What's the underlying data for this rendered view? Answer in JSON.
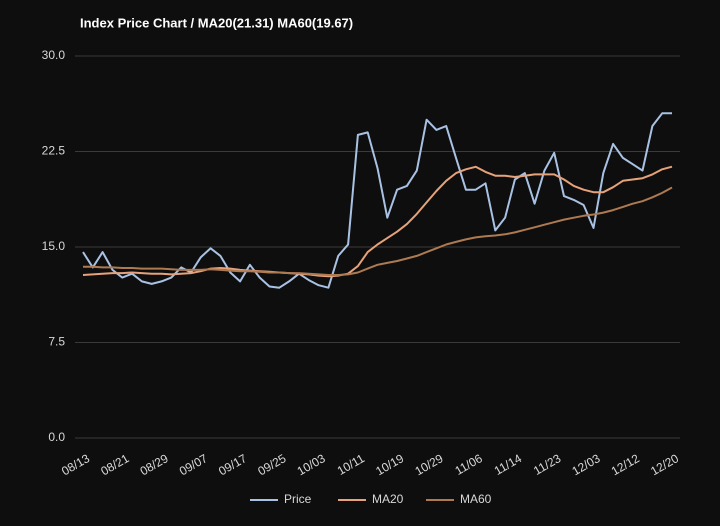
{
  "chart_data": {
    "type": "line",
    "title": "Index Price Chart / MA20(21.31) MA60(19.67)",
    "categories": [
      "08/13",
      null,
      null,
      null,
      "08/21",
      null,
      null,
      null,
      "08/29",
      null,
      null,
      null,
      "09/07",
      null,
      null,
      null,
      "09/17",
      null,
      null,
      null,
      "09/25",
      null,
      null,
      null,
      "10/03",
      null,
      null,
      null,
      "10/11",
      null,
      null,
      null,
      "10/19",
      null,
      null,
      null,
      "10/29",
      null,
      null,
      null,
      "11/06",
      null,
      null,
      null,
      "11/14",
      null,
      null,
      null,
      "11/23",
      null,
      null,
      null,
      "12/03",
      null,
      null,
      null,
      "12/12",
      null,
      null,
      null,
      "12/20"
    ],
    "series": [
      {
        "name": "Price",
        "color": "#a9c2e4",
        "values": [
          14.6,
          13.4,
          14.6,
          13.2,
          12.6,
          12.9,
          12.3,
          12.1,
          12.3,
          12.6,
          13.4,
          13.0,
          14.2,
          14.9,
          14.3,
          13.0,
          12.3,
          13.6,
          12.6,
          11.9,
          11.8,
          12.3,
          12.9,
          12.4,
          12.0,
          11.8,
          14.3,
          15.2,
          23.8,
          24.0,
          21.2,
          17.3,
          19.5,
          19.8,
          21.0,
          25.0,
          24.2,
          24.5,
          22.0,
          19.5,
          19.5,
          20.0,
          16.3,
          17.3,
          20.3,
          20.8,
          18.4,
          21.0,
          22.4,
          19.0,
          18.7,
          18.3,
          16.5,
          20.8,
          23.1,
          22.0,
          21.5,
          21.0,
          24.5,
          25.5,
          25.5
        ]
      },
      {
        "name": "MA20",
        "color": "#e6a27a",
        "values": [
          12.8,
          12.85,
          12.9,
          12.95,
          12.95,
          13.0,
          12.95,
          12.9,
          12.9,
          12.85,
          12.9,
          12.95,
          13.1,
          13.3,
          13.35,
          13.3,
          13.2,
          13.15,
          13.1,
          13.05,
          13.0,
          12.95,
          12.9,
          12.85,
          12.75,
          12.7,
          12.75,
          12.9,
          13.5,
          14.6,
          15.2,
          15.7,
          16.2,
          16.8,
          17.6,
          18.5,
          19.4,
          20.2,
          20.8,
          21.1,
          21.3,
          20.9,
          20.6,
          20.6,
          20.5,
          20.6,
          20.7,
          20.7,
          20.7,
          20.3,
          19.8,
          19.5,
          19.3,
          19.3,
          19.7,
          20.2,
          20.3,
          20.4,
          20.7,
          21.1,
          21.31
        ]
      },
      {
        "name": "MA60",
        "color": "#ad7a52",
        "values": [
          13.45,
          13.45,
          13.4,
          13.4,
          13.35,
          13.35,
          13.3,
          13.3,
          13.3,
          13.25,
          13.2,
          13.2,
          13.2,
          13.25,
          13.2,
          13.15,
          13.1,
          13.1,
          13.05,
          13.0,
          13.0,
          12.95,
          12.95,
          12.9,
          12.85,
          12.8,
          12.8,
          12.85,
          13.0,
          13.3,
          13.6,
          13.75,
          13.9,
          14.1,
          14.3,
          14.6,
          14.9,
          15.2,
          15.4,
          15.6,
          15.75,
          15.85,
          15.9,
          16.0,
          16.15,
          16.35,
          16.55,
          16.75,
          16.95,
          17.15,
          17.3,
          17.45,
          17.55,
          17.7,
          17.9,
          18.15,
          18.4,
          18.6,
          18.9,
          19.25,
          19.67
        ]
      }
    ],
    "ylim": [
      0,
      30
    ],
    "yticks": [
      {
        "value": 0,
        "label": "0.0"
      },
      7.5,
      {
        "value": 15,
        "label": "15.0"
      },
      {
        "value": 22.5,
        "label": "22.5"
      },
      {
        "value": 30,
        "label": "30.0"
      }
    ],
    "grid": true,
    "legend": "bottom"
  }
}
